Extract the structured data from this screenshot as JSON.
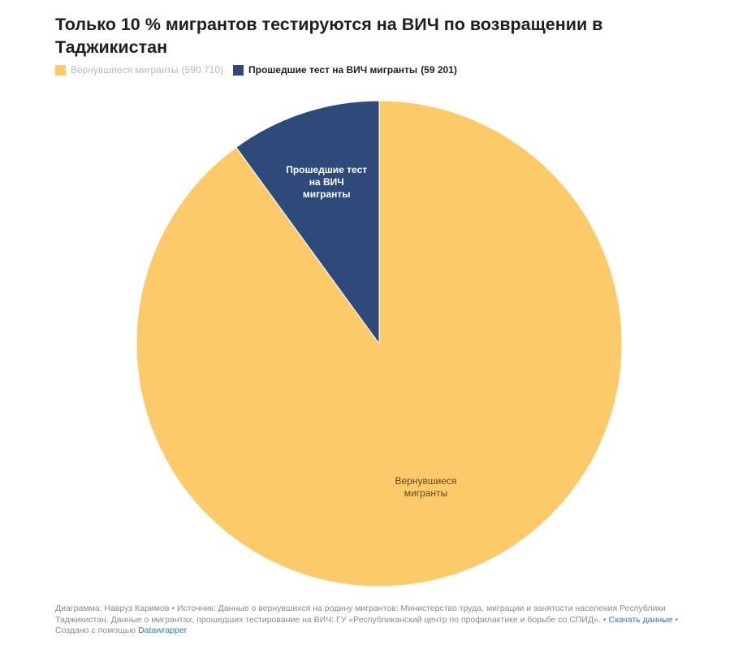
{
  "title": "Только 10 % мигрантов тестируются на ВИЧ по возвращении в Таджикистан",
  "legend": [
    {
      "label": "Вернувшиеся мигранты",
      "value": "(590 710)",
      "color": "#fdca6a"
    },
    {
      "label": "Прошедшие тест на ВИЧ мигранты",
      "value": "(59 201)",
      "color": "#2e4a7a"
    }
  ],
  "chart_data": {
    "type": "pie",
    "slices": [
      {
        "label": "Вернувшиеся мигранты",
        "value": 531509,
        "color": "#fdca6a",
        "label_color": "#5a4a1e"
      },
      {
        "label": "Прошедшие тест на ВИЧ мигранты",
        "value": 59201,
        "color": "#2e4a7a",
        "label_color": "#ffffff"
      }
    ],
    "slice_labels": [
      [
        "Вернувшиеся",
        "мигранты"
      ],
      [
        "Прошедшие тест",
        "на ВИЧ",
        "мигранты"
      ]
    ]
  },
  "footer": {
    "text": "Диаграмма: Навруз Каримов • Источник: Данные о вернувшихся на родину мигрантов: Министерство труда, миграции и занятости населения Республики Таджикистан. Данные о мигрантах, прошедших тестирование на ВИЧ: ГУ «Республиканский центр по профилактике и борьбе со СПИД». • ",
    "download_link": "Скачать данные",
    "sep": " • ",
    "created": "Создано с помощью ",
    "tool_link": "Datawrapper"
  }
}
